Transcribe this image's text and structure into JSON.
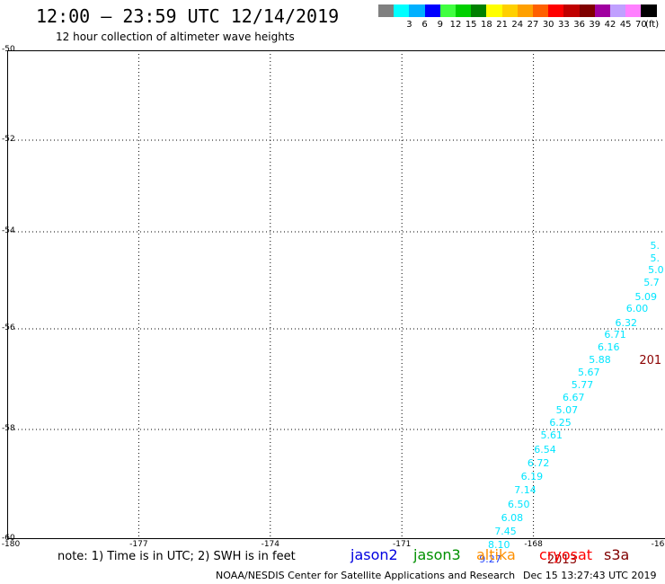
{
  "header": {
    "title": "12:00 – 23:59 UTC 12/14/2019",
    "subtitle": "12 hour collection of altimeter wave heights"
  },
  "legend": {
    "unit": "(ft)",
    "bins": [
      {
        "color": "#808080",
        "label": ""
      },
      {
        "color": "#00ffff",
        "label": "3"
      },
      {
        "color": "#00b0ff",
        "label": "6"
      },
      {
        "color": "#0000ff",
        "label": "9"
      },
      {
        "color": "#40ff40",
        "label": "12"
      },
      {
        "color": "#00d000",
        "label": "15"
      },
      {
        "color": "#008000",
        "label": "18"
      },
      {
        "color": "#ffff00",
        "label": "21"
      },
      {
        "color": "#ffd000",
        "label": "24"
      },
      {
        "color": "#ffa000",
        "label": "27"
      },
      {
        "color": "#ff6000",
        "label": "30"
      },
      {
        "color": "#ff0000",
        "label": "33"
      },
      {
        "color": "#c00000",
        "label": "36"
      },
      {
        "color": "#800000",
        "label": "39"
      },
      {
        "color": "#a000a0",
        "label": "42"
      },
      {
        "color": "#c0a0ff",
        "label": "45"
      },
      {
        "color": "#ff80ff",
        "label": "70"
      },
      {
        "color": "#000000",
        "label": ""
      }
    ]
  },
  "map": {
    "lat_labels": [
      "-50",
      "-52",
      "-54",
      "-56",
      "-58",
      "-60"
    ],
    "lon_labels": [
      "-180",
      "-177",
      "-174",
      "-171",
      "-168",
      "-16"
    ],
    "grid": "dotted"
  },
  "observations": {
    "color": "#00e5ff",
    "points": [
      {
        "value": "5.",
        "lat": -54.3,
        "lon": -165.05
      },
      {
        "value": "5.",
        "lat": -54.55,
        "lon": -165.05
      },
      {
        "value": "5.0",
        "lat": -54.8,
        "lon": -165.1
      },
      {
        "value": "5.7",
        "lat": -55.05,
        "lon": -165.2
      },
      {
        "value": "5.09",
        "lat": -55.35,
        "lon": -165.4
      },
      {
        "value": "6.00",
        "lat": -55.6,
        "lon": -165.6
      },
      {
        "value": "6.32",
        "lat": -55.88,
        "lon": -165.85
      },
      {
        "value": "6.71",
        "lat": -56.12,
        "lon": -166.1
      },
      {
        "value": "6.16",
        "lat": -56.37,
        "lon": -166.25
      },
      {
        "value": "5.88",
        "lat": -56.62,
        "lon": -166.45
      },
      {
        "value": "5.67",
        "lat": -56.87,
        "lon": -166.7
      },
      {
        "value": "5.77",
        "lat": -57.12,
        "lon": -166.85
      },
      {
        "value": "6.67",
        "lat": -57.37,
        "lon": -167.05
      },
      {
        "value": "5.07",
        "lat": -57.62,
        "lon": -167.2
      },
      {
        "value": "6.25",
        "lat": -57.87,
        "lon": -167.35
      },
      {
        "value": "5.61",
        "lat": -58.12,
        "lon": -167.55
      },
      {
        "value": "6.54",
        "lat": -58.37,
        "lon": -167.7
      },
      {
        "value": "6.72",
        "lat": -58.62,
        "lon": -167.85
      },
      {
        "value": "6.19",
        "lat": -58.87,
        "lon": -168.0
      },
      {
        "value": "7.14",
        "lat": -59.12,
        "lon": -168.15
      },
      {
        "value": "6.50",
        "lat": -59.37,
        "lon": -168.3
      },
      {
        "value": "6.08",
        "lat": -59.62,
        "lon": -168.45
      },
      {
        "value": "7.45",
        "lat": -59.87,
        "lon": -168.6
      },
      {
        "value": "8.10",
        "lat": -60.12,
        "lon": -168.75
      }
    ],
    "last_point": {
      "value": "9.27",
      "color": "#2040ff",
      "lat": -60.37,
      "lon": -168.95
    },
    "year_labels": [
      {
        "text": "2013",
        "lat": -60.4,
        "lon": -167.4
      },
      {
        "text": "201",
        "lat": -56.65,
        "lon": -165.3
      }
    ]
  },
  "footer": {
    "note": "note: 1) Time is in UTC; 2) SWH is in feet",
    "satellites": [
      {
        "name": "jason2",
        "color": "#0000e0"
      },
      {
        "name": "jason3",
        "color": "#009000"
      },
      {
        "name": "altika",
        "color": "#ff9000"
      },
      {
        "name": "cryosat",
        "color": "#ff0000"
      },
      {
        "name": "s3a",
        "color": "#800000"
      }
    ],
    "credit": "NOAA/NESDIS Center for Satellite Applications and Research",
    "timestamp": "Dec 15 13:27:43 UTC 2019"
  }
}
